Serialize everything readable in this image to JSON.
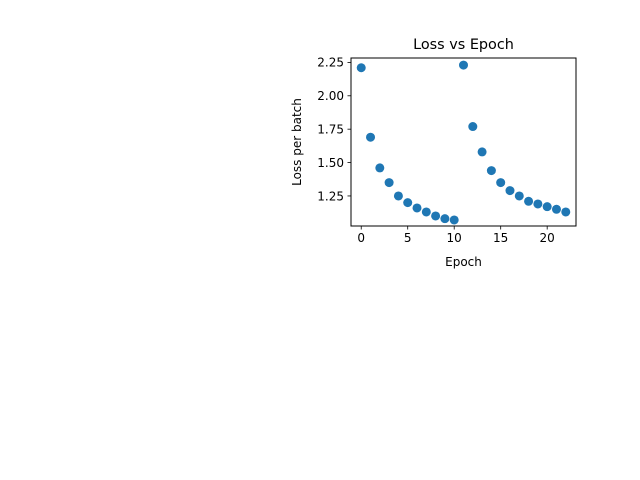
{
  "chart_data": {
    "type": "scatter",
    "title": "Loss vs Epoch",
    "xlabel": "Epoch",
    "ylabel": "Loss per batch",
    "xlim": [
      -1.1,
      23.1
    ],
    "ylim": [
      1.025,
      2.283
    ],
    "xticks": [
      0,
      5,
      10,
      15,
      20
    ],
    "xtick_labels": [
      "0",
      "5",
      "10",
      "15",
      "20"
    ],
    "yticks": [
      1.25,
      1.5,
      1.75,
      2.0,
      2.25
    ],
    "ytick_labels": [
      "1.25",
      "1.50",
      "1.75",
      "2.00",
      "2.25"
    ],
    "grid": false,
    "legend": "none",
    "marker_color": "#1f77b4",
    "x": [
      0,
      1,
      2,
      3,
      4,
      5,
      6,
      7,
      8,
      9,
      10,
      11,
      12,
      13,
      14,
      15,
      16,
      17,
      18,
      19,
      20,
      21,
      22
    ],
    "y": [
      2.21,
      1.69,
      1.46,
      1.35,
      1.25,
      1.2,
      1.16,
      1.13,
      1.1,
      1.08,
      1.07,
      2.23,
      1.77,
      1.58,
      1.44,
      1.35,
      1.29,
      1.25,
      1.21,
      1.19,
      1.17,
      1.15,
      1.13
    ]
  }
}
